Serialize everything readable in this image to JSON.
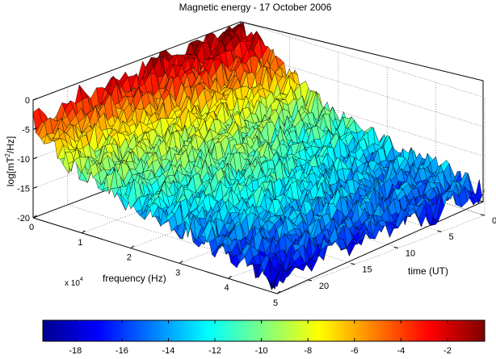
{
  "chart_data": {
    "type": "surface",
    "title": "Magnetic energy - 17 October 2006",
    "xlabel": "frequency (Hz)",
    "x_multiplier": "x 10",
    "x_multiplier_exp": "4",
    "xticks": [
      "0",
      "1",
      "2",
      "3",
      "4",
      "5"
    ],
    "xlim": [
      0,
      5
    ],
    "ylabel": "time (UT)",
    "yticks": [
      "0",
      "5",
      "10",
      "15",
      "20"
    ],
    "ylim": [
      0,
      24
    ],
    "zlabel_parts": [
      "log[mT",
      "2",
      "/Hz]"
    ],
    "zticks": [
      "-20",
      "-15",
      "-10",
      "-5",
      "0"
    ],
    "zlim": [
      -20,
      0
    ],
    "grid": true,
    "colormap": "jet",
    "colorbar": {
      "placement": "bottom",
      "ticks": [
        "-18",
        "-16",
        "-14",
        "-12",
        "-10",
        "-8",
        "-6",
        "-4",
        "-2"
      ],
      "range": [
        -19.4,
        -0.4
      ]
    },
    "surface_profile": {
      "description_values_at_time_slices_log_mT2_per_Hz": {
        "frequency_1e4_Hz": [
          0,
          0.5,
          1,
          1.5,
          2,
          2.5,
          3,
          3.5,
          4,
          4.5,
          5
        ],
        "time_0_UT": [
          -1,
          -3,
          -6,
          -9,
          -11,
          -12,
          -13,
          -14,
          -14,
          -15,
          -16
        ],
        "time_6_UT": [
          -1,
          -4,
          -7,
          -10,
          -11,
          -12,
          -13,
          -14,
          -15,
          -15,
          -16
        ],
        "time_12_UT": [
          -2,
          -5,
          -8,
          -9,
          -10,
          -11,
          -12,
          -13,
          -14,
          -15,
          -16
        ],
        "time_18_UT": [
          -3,
          -7,
          -9,
          -10,
          -11,
          -12,
          -12,
          -13,
          -14,
          -15,
          -16
        ],
        "time_24_UT": [
          -4,
          -8,
          -10,
          -11,
          -12,
          -13,
          -14,
          -15,
          -16,
          -17,
          -18
        ]
      }
    }
  }
}
